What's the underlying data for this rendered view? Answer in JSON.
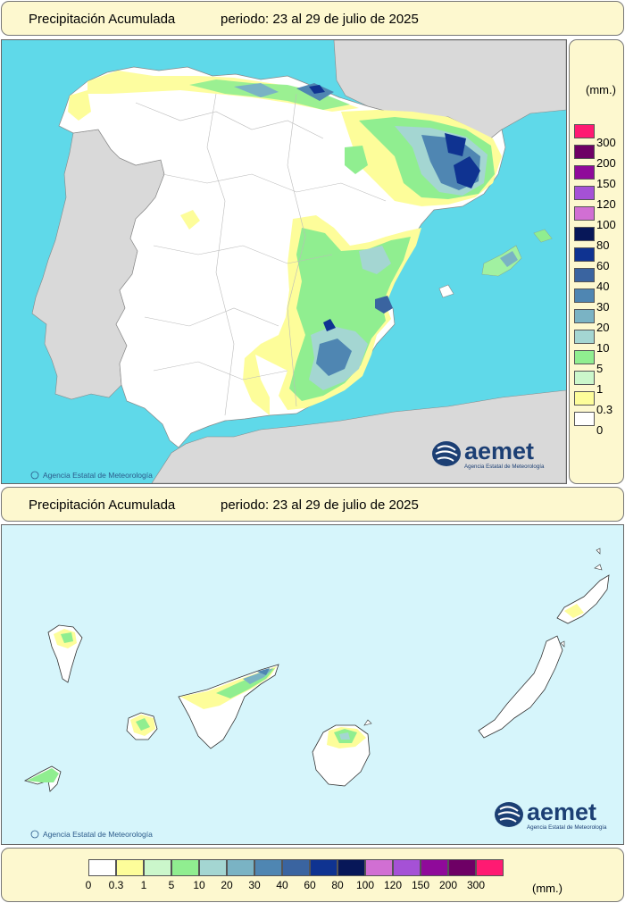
{
  "top_panel": {
    "title": "Precipitación Acumulada",
    "period": "periodo: 23 al 29 de julio de 2025"
  },
  "bottom_panel": {
    "title": "Precipitación Acumulada",
    "period": "periodo: 23 al 29 de julio de 2025"
  },
  "credit": "Agencia Estatal de Meteorología",
  "copyright_symbol": "©",
  "logo": {
    "word": "aemet",
    "subtitle": "Agencia Estatal de Meteorología"
  },
  "legend": {
    "units": "(mm.)",
    "thresholds": [
      "0",
      "0.3",
      "1",
      "5",
      "10",
      "20",
      "30",
      "40",
      "60",
      "80",
      "100",
      "120",
      "150",
      "200",
      "300"
    ],
    "colors": [
      "#ffffff",
      "#fdfd9a",
      "#cbf7cb",
      "#90ee90",
      "#a4d6d2",
      "#7ab3c4",
      "#4f86b2",
      "#3a64a0",
      "#0f3391",
      "#071758",
      "#d16fd3",
      "#a551d6",
      "#8f0a9a",
      "#6e0065",
      "#ff1a72"
    ]
  },
  "map_colors": {
    "sea": "#5fd9e9",
    "foreign_land": "#d9d9d9",
    "land": "#ffffff",
    "canary_sea": "#d6f5fb"
  }
}
